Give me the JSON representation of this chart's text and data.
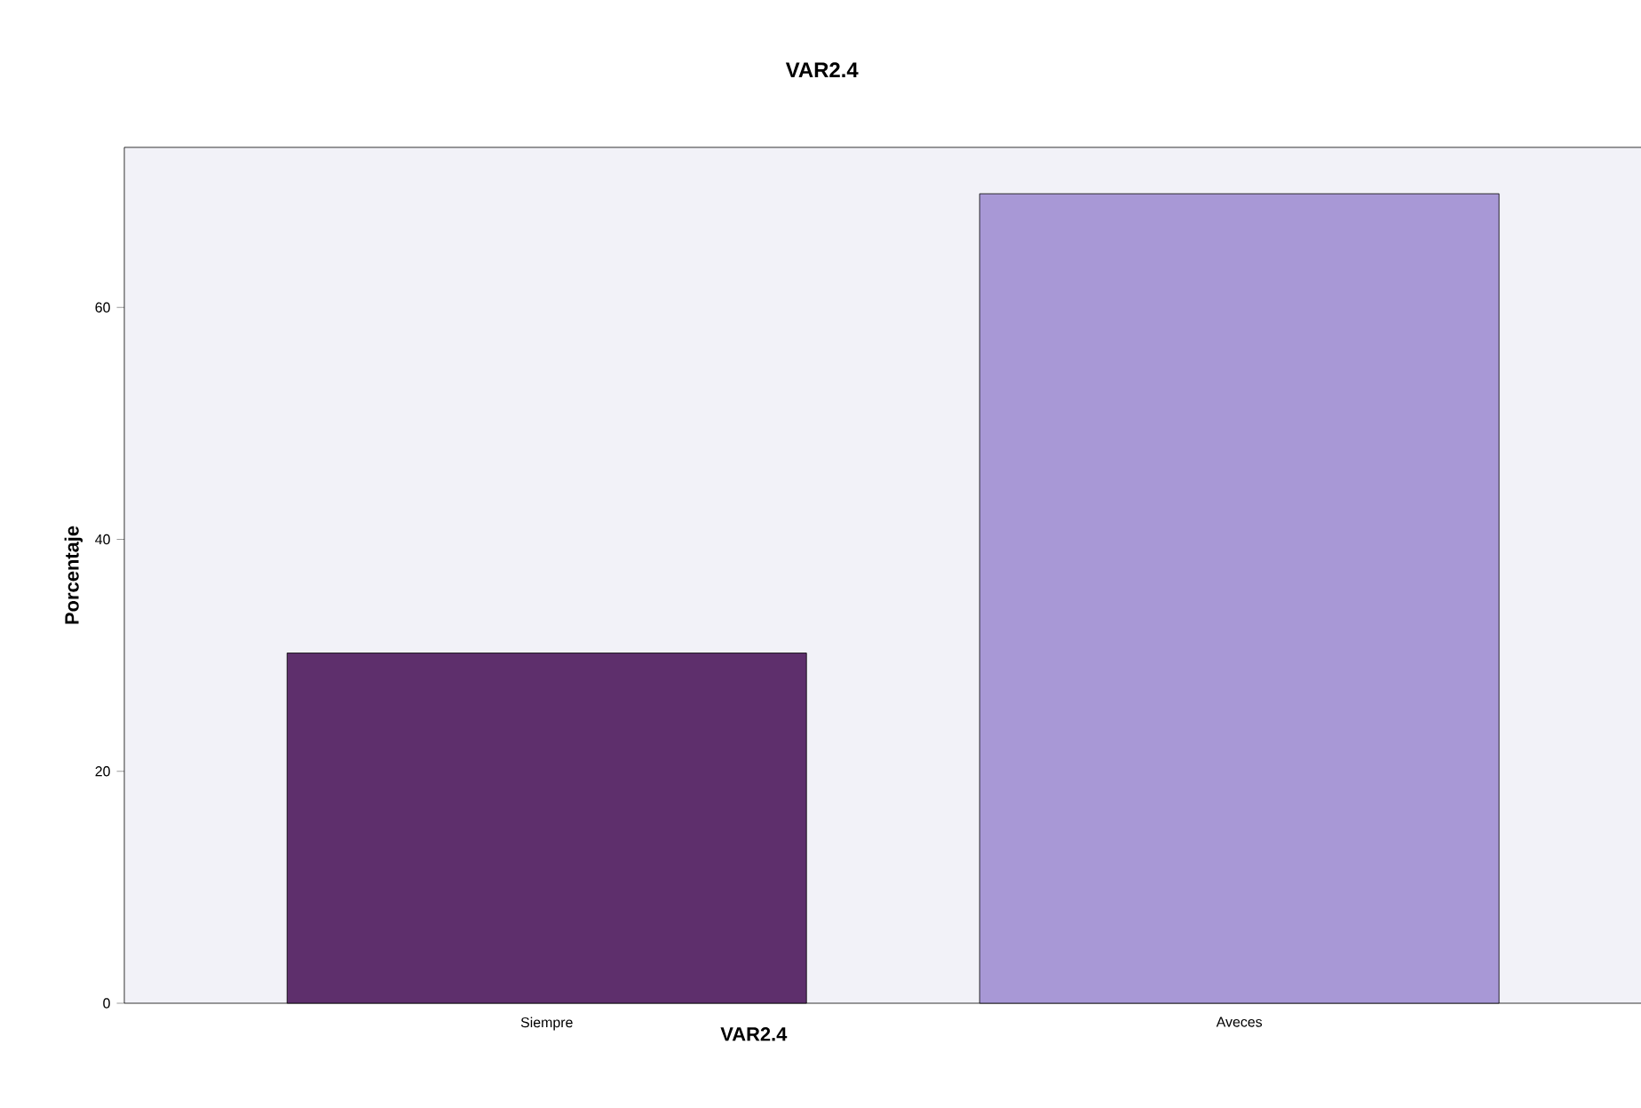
{
  "chart_data": {
    "type": "bar",
    "title": "VAR2.4",
    "xlabel": "VAR2.4",
    "ylabel": "Porcentaje",
    "categories": [
      "Siempre",
      "Aveces"
    ],
    "values": [
      30.2,
      69.8
    ],
    "colors": [
      "#5e2f6c",
      "#a898d6"
    ],
    "ylim": [
      0,
      73.8
    ],
    "yticks": [
      0,
      20,
      40,
      60
    ],
    "grid": false
  }
}
